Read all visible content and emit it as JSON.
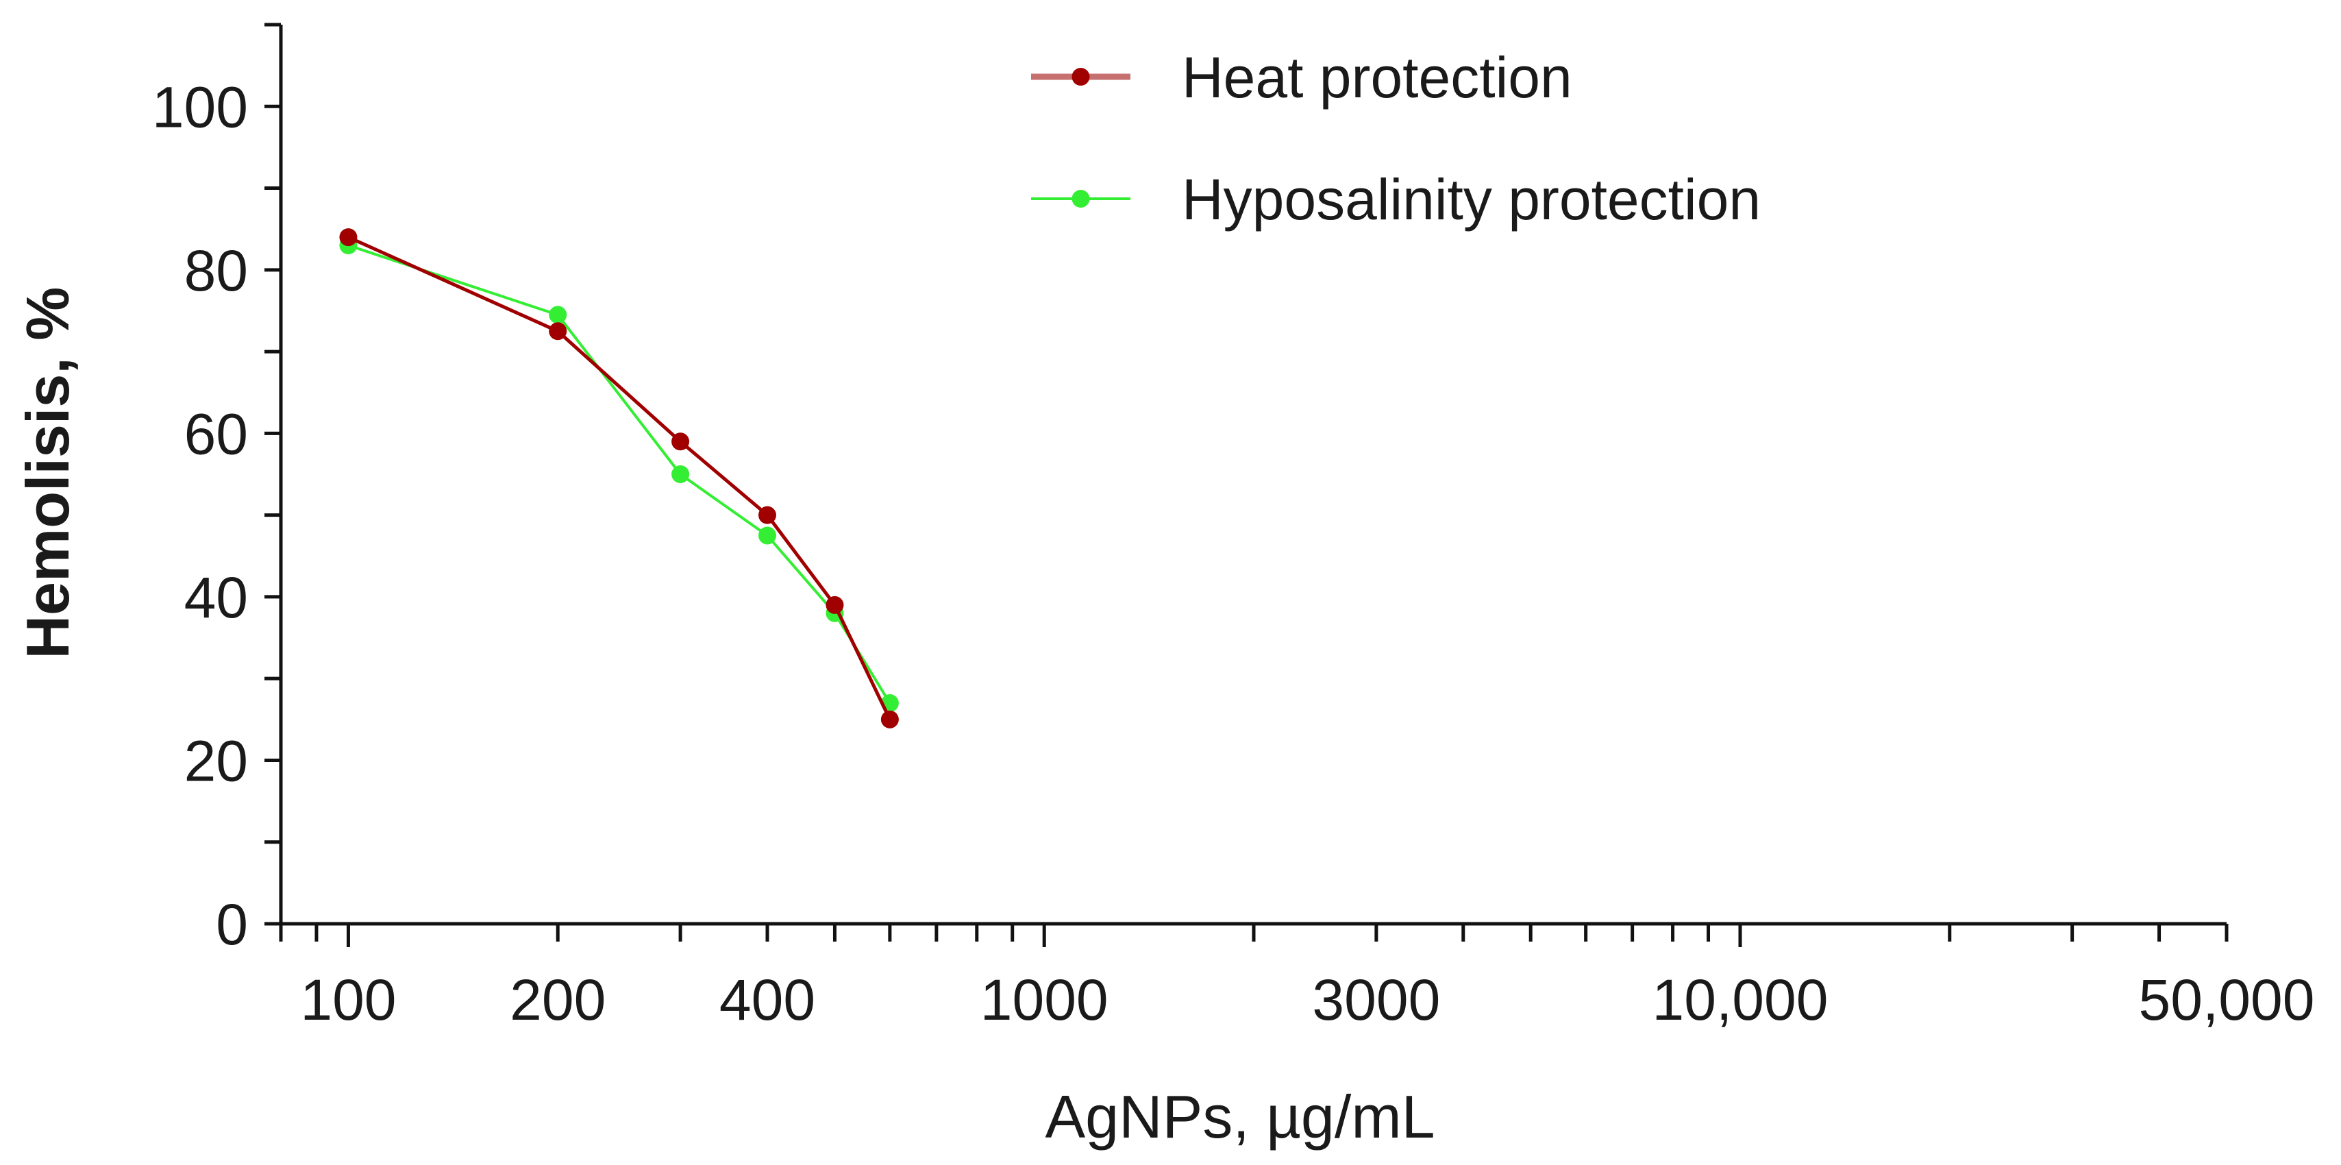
{
  "chart_data": {
    "type": "line",
    "xscale": "log",
    "title": "",
    "xlabel": "AgNPs, µg/mL",
    "ylabel": "Hemolisis, %",
    "xlim": [
      80,
      50000
    ],
    "ylim": [
      0,
      110
    ],
    "x_ticks": [
      {
        "value": 100,
        "label": "100"
      },
      {
        "value": 200,
        "label": "200"
      },
      {
        "value": 400,
        "label": "400"
      },
      {
        "value": 1000,
        "label": "1000"
      },
      {
        "value": 3000,
        "label": "3000"
      },
      {
        "value": 10000,
        "label": "10,000"
      },
      {
        "value": 50000,
        "label": "50,000"
      }
    ],
    "y_ticks": [
      {
        "value": 0,
        "label": "0"
      },
      {
        "value": 20,
        "label": "20"
      },
      {
        "value": 40,
        "label": "40"
      },
      {
        "value": 60,
        "label": "60"
      },
      {
        "value": 80,
        "label": "80"
      },
      {
        "value": 100,
        "label": "100"
      }
    ],
    "series": [
      {
        "name": "Heat protection",
        "color": "#a00000",
        "legend_line_color": "#c77070",
        "x": [
          100,
          200,
          300,
          400,
          500,
          600
        ],
        "values": [
          84,
          72.5,
          59,
          50,
          39,
          25
        ]
      },
      {
        "name": "Hyposalinity protection",
        "color": "#33ee33",
        "legend_line_color": "#33ee33",
        "x": [
          100,
          200,
          300,
          400,
          500,
          600
        ],
        "values": [
          83,
          74.5,
          55,
          47.5,
          38,
          27
        ]
      }
    ],
    "legend_position": "top-center",
    "grid": false
  }
}
